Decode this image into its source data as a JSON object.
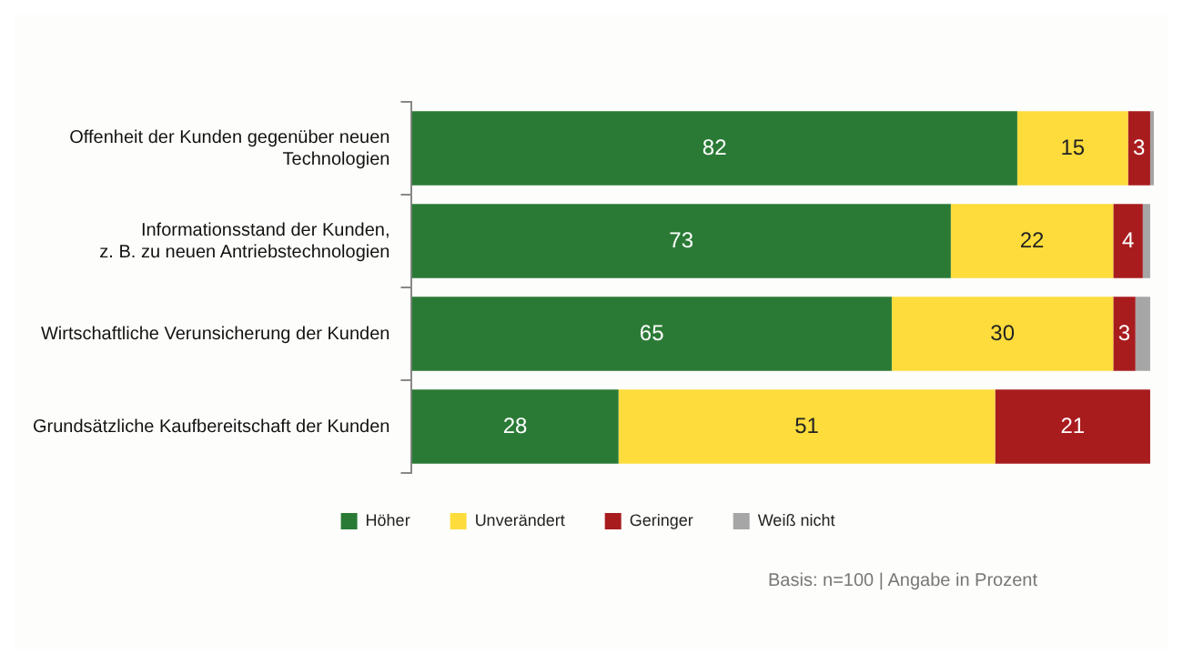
{
  "chart_data": {
    "type": "bar",
    "orientation": "horizontal",
    "stacked": true,
    "categories": [
      "Offenheit der Kunden gegenüber neuen\nTechnologien",
      "Informationsstand der Kunden,\nz. B. zu neuen Antriebstechnologien",
      "Wirtschaftliche Verunsicherung der Kunden",
      "Grundsätzliche Kaufbereitschaft der Kunden"
    ],
    "series": [
      {
        "name": "Höher",
        "color": "#2a7a35",
        "values": [
          82,
          73,
          65,
          28
        ],
        "value_labels": [
          "82",
          "73",
          "65",
          "28"
        ]
      },
      {
        "name": "Unverändert",
        "color": "#fddc3c",
        "values": [
          15,
          22,
          30,
          51
        ],
        "value_labels": [
          "15",
          "22",
          "30",
          "51"
        ]
      },
      {
        "name": "Geringer",
        "color": "#a81c1e",
        "values": [
          3,
          4,
          3,
          21
        ],
        "value_labels": [
          "3",
          "4",
          "3",
          "21"
        ]
      },
      {
        "name": "Weiß nicht",
        "color": "#a6a6a6",
        "values": [
          0.5,
          1,
          2,
          0
        ],
        "value_labels": [
          null,
          null,
          null,
          null
        ]
      }
    ],
    "legend": "bottom",
    "annotations": [
      "Basis: n=100 | Angabe in Prozent"
    ]
  }
}
